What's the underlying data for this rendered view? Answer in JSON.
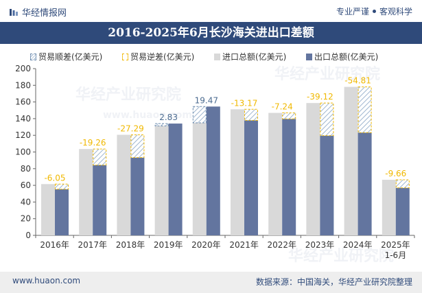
{
  "header": {
    "brand": "华经情报网",
    "slogan_left": "专业严谨",
    "slogan_right": "客观科学"
  },
  "title": "2016-2025年6月长沙海关进出口差额",
  "legend": {
    "surplus": "贸易顺差(亿美元)",
    "deficit": "贸易逆差(亿美元)",
    "import": "进口总额(亿美元)",
    "export": "出口总额(亿美元)"
  },
  "colors": {
    "title_bg": "#2f4a7a",
    "import": "#d9d9d9",
    "export": "#63759f",
    "surplus_label": "#4a6a8f",
    "deficit_label": "#f0b800"
  },
  "chart_data": {
    "type": "bar",
    "categories": [
      "2016年",
      "2017年",
      "2018年",
      "2019年",
      "2020年",
      "2021年",
      "2022年",
      "2023年",
      "2024年",
      "2025年\n1-6月"
    ],
    "series": [
      {
        "name": "进口总额(亿美元)",
        "values": [
          61.5,
          103.6,
          120.6,
          131.3,
          135.0,
          151.2,
          146.9,
          158.7,
          178.1,
          66.7
        ]
      },
      {
        "name": "出口总额(亿美元)",
        "values": [
          55.4,
          84.3,
          93.3,
          134.1,
          154.5,
          138.0,
          139.7,
          119.6,
          123.3,
          57.0
        ]
      }
    ],
    "balance": {
      "values": [
        -6.05,
        -19.26,
        -27.29,
        2.83,
        19.47,
        -13.17,
        -7.24,
        -39.12,
        -54.81,
        -9.66
      ],
      "labels": [
        "-6.05",
        "-19.26",
        "-27.29",
        "2.83",
        "19.47",
        "-13.17",
        "-7.24",
        "-39.12",
        "-54.81",
        "-9.66"
      ]
    },
    "y_ticks": [
      "0",
      "20",
      "40",
      "60",
      "80",
      "100",
      "120",
      "140",
      "160",
      "180",
      "200"
    ],
    "ylim": [
      0,
      200
    ]
  },
  "watermarks": [
    "华经产业研究院",
    "www.huaon.com"
  ],
  "footer": {
    "url": "www.huaon.com",
    "source": "数据来源：中国海关，华经产业研究院整理"
  }
}
